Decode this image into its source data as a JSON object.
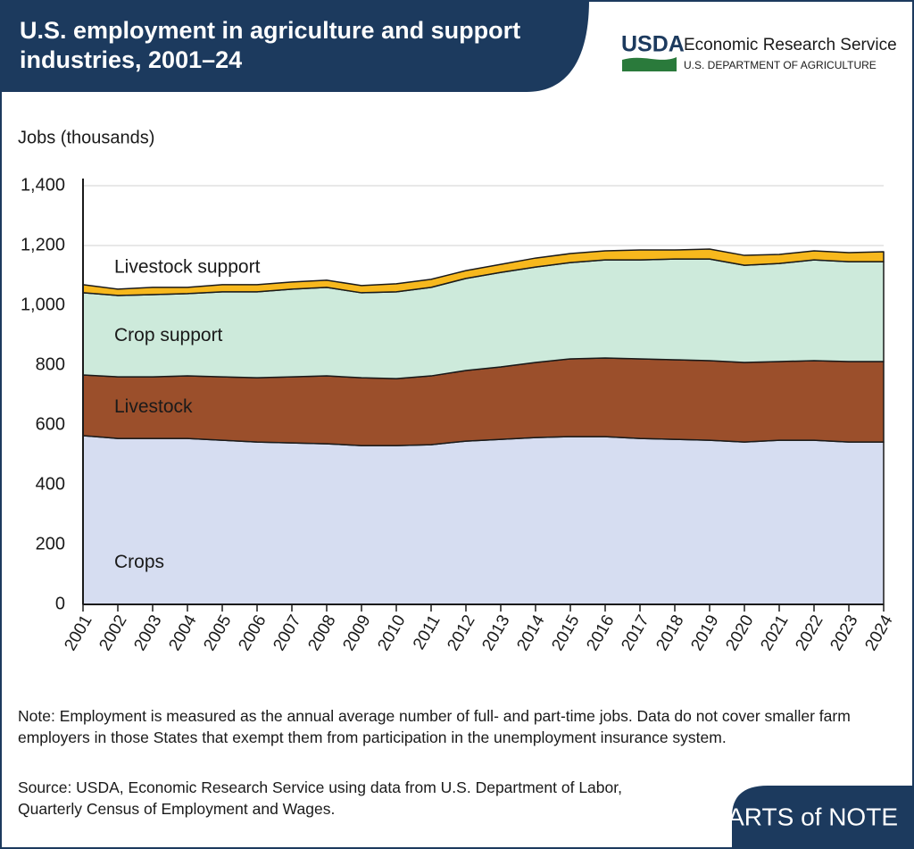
{
  "chart_data": {
    "type": "stacked_area",
    "title": "U.S. employment in agriculture and support industries, 2001–24",
    "y_label": "Jobs (thousands)",
    "categories": [
      "2001",
      "2002",
      "2003",
      "2004",
      "2005",
      "2006",
      "2007",
      "2008",
      "2009",
      "2010",
      "2011",
      "2012",
      "2013",
      "2014",
      "2015",
      "2016",
      "2017",
      "2018",
      "2019",
      "2020",
      "2021",
      "2022",
      "2023",
      "2024"
    ],
    "series": [
      {
        "name": "Crops",
        "color": "#d6ddf1",
        "values": [
          564,
          555,
          555,
          555,
          549,
          543,
          540,
          537,
          531,
          531,
          534,
          546,
          552,
          558,
          561,
          561,
          555,
          552,
          549,
          543,
          549,
          549,
          543,
          543
        ]
      },
      {
        "name": "Livestock",
        "color": "#9b4f2b",
        "values": [
          203,
          206,
          206,
          209,
          212,
          215,
          221,
          227,
          227,
          224,
          230,
          236,
          242,
          251,
          260,
          263,
          266,
          266,
          266,
          266,
          263,
          266,
          269,
          269
        ]
      },
      {
        "name": "Crop support",
        "color": "#cdeadb",
        "values": [
          275,
          272,
          275,
          275,
          284,
          287,
          293,
          296,
          284,
          290,
          296,
          308,
          316,
          319,
          322,
          328,
          331,
          337,
          340,
          325,
          328,
          337,
          334,
          334
        ]
      },
      {
        "name": "Livestock support",
        "color": "#f7b81d",
        "values": [
          27,
          21,
          24,
          21,
          24,
          24,
          24,
          24,
          24,
          27,
          27,
          26,
          27,
          30,
          30,
          30,
          33,
          30,
          33,
          33,
          30,
          30,
          30,
          33
        ]
      }
    ],
    "ylim": [
      0,
      1400
    ],
    "yticks": [
      0,
      200,
      400,
      600,
      800,
      {
        "value": 1000,
        "label": "1,000"
      },
      {
        "value": 1200,
        "label": "1,200"
      },
      {
        "value": 1400,
        "label": "1,400"
      }
    ],
    "grid": true,
    "note": "Note: Employment is measured as the annual average number of full- and part-time jobs. Data do not cover smaller farm employers in those States that exempt them from participation in the unemployment insurance system.",
    "source": "Source: USDA, Economic Research Service using data from U.S. Department of Labor, Quarterly Census of Employment and Wages."
  },
  "branding": {
    "logo": "USDA",
    "agency": "Economic Research Service",
    "department": "U.S. DEPARTMENT OF AGRICULTURE",
    "series": "CHARTS of NOTE"
  }
}
